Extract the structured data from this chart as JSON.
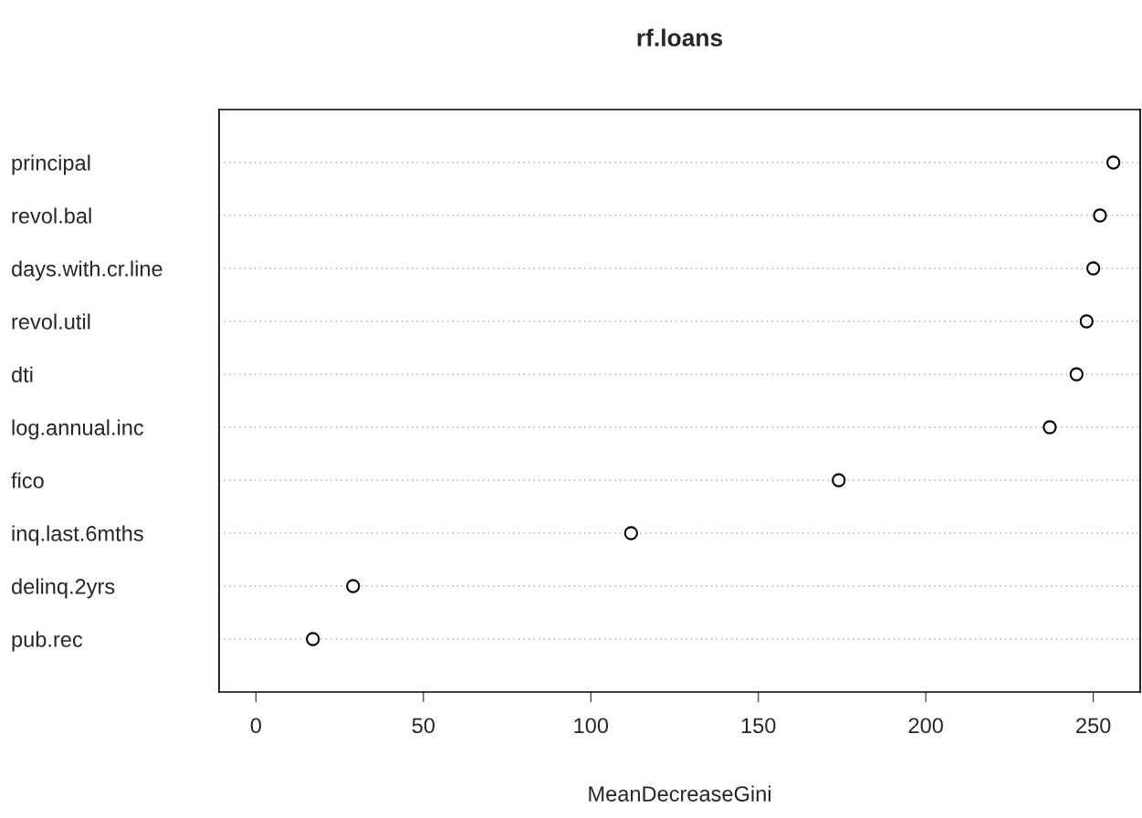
{
  "chart_data": {
    "type": "scatter",
    "orientation": "horizontal",
    "title": "rf.loans",
    "xlabel": "MeanDecreaseGini",
    "categories": [
      "principal",
      "revol.bal",
      "days.with.cr.line",
      "revol.util",
      "dti",
      "log.annual.inc",
      "fico",
      "inq.last.6mths",
      "delinq.2yrs",
      "pub.rec"
    ],
    "values": [
      256,
      252,
      250,
      248,
      245,
      237,
      174,
      112,
      29,
      17
    ],
    "color": "#000000",
    "marker": "circle",
    "grid": "y",
    "xlim": [
      -11,
      264
    ],
    "xticks": [
      0,
      50,
      100,
      150,
      200,
      250
    ]
  }
}
